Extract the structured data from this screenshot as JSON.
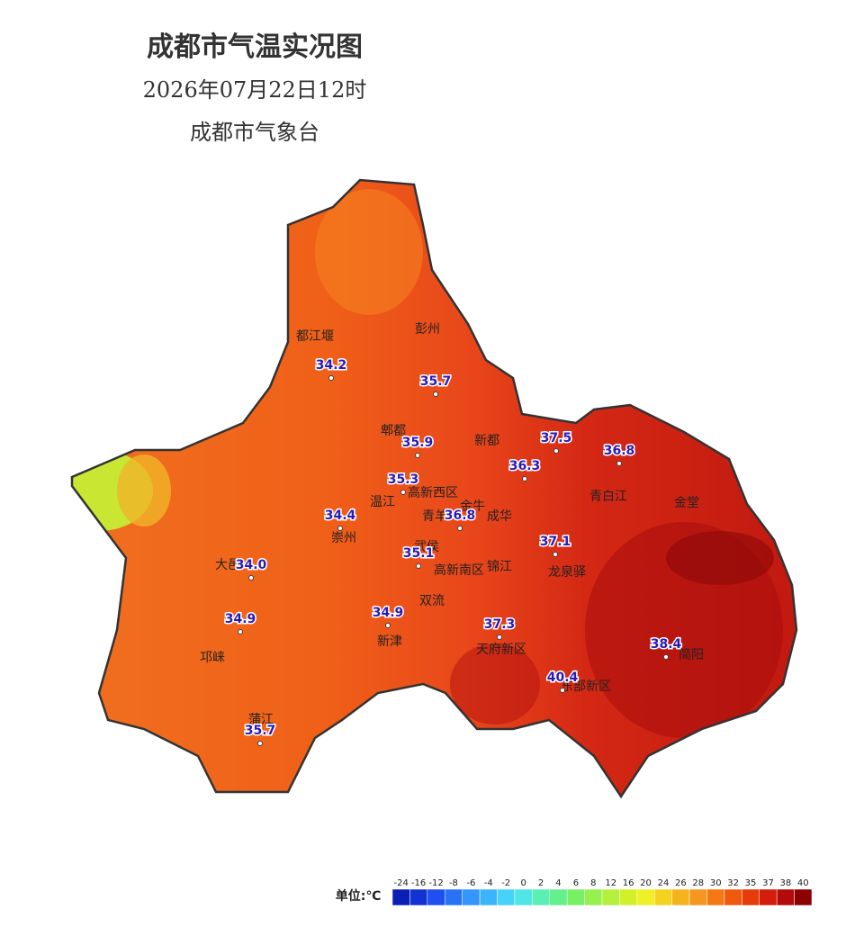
{
  "header": {
    "title": "成都市气温实况图",
    "time": "2026年07月22日12时",
    "source": "成都市气象台"
  },
  "districts": [
    "都江堰",
    "彭州",
    "郫都",
    "新都",
    "青白江",
    "金堂",
    "温江",
    "高新西区",
    "青羊",
    "金牛",
    "成华",
    "崇州",
    "大邑",
    "武侯",
    "高新南区",
    "锦江",
    "龙泉驿",
    "双流",
    "新津",
    "天府新区",
    "东部新区",
    "邛崃",
    "蒲江",
    "简阳"
  ],
  "temperatures": [
    "34.2",
    "35.7",
    "35.9",
    "37.5",
    "36.8",
    "36.3",
    "35.3",
    "36.8",
    "34.4",
    "37.1",
    "34.0",
    "35.1",
    "34.9",
    "34.9",
    "37.3",
    "38.4",
    "40.4",
    "35.7"
  ],
  "legend": {
    "unit": "单位:℃",
    "ticks": [
      -24,
      -16,
      -12,
      -8,
      -6,
      -4,
      -2,
      0,
      2,
      4,
      6,
      8,
      12,
      16,
      20,
      24,
      26,
      28,
      30,
      32,
      35,
      37,
      38,
      40
    ],
    "colors": [
      "#0a1fb4",
      "#1432d2",
      "#1e50f0",
      "#2873f5",
      "#3296fa",
      "#3cb4fa",
      "#46d2fa",
      "#50e6e6",
      "#5af0b4",
      "#64f08c",
      "#78f064",
      "#96f050",
      "#b4f03c",
      "#d2f028",
      "#f0f028",
      "#f5d21e",
      "#f5b41e",
      "#f5961e",
      "#f57814",
      "#f05a0f",
      "#e63c0a",
      "#d21e0a",
      "#b40a0a",
      "#8c0000"
    ]
  }
}
